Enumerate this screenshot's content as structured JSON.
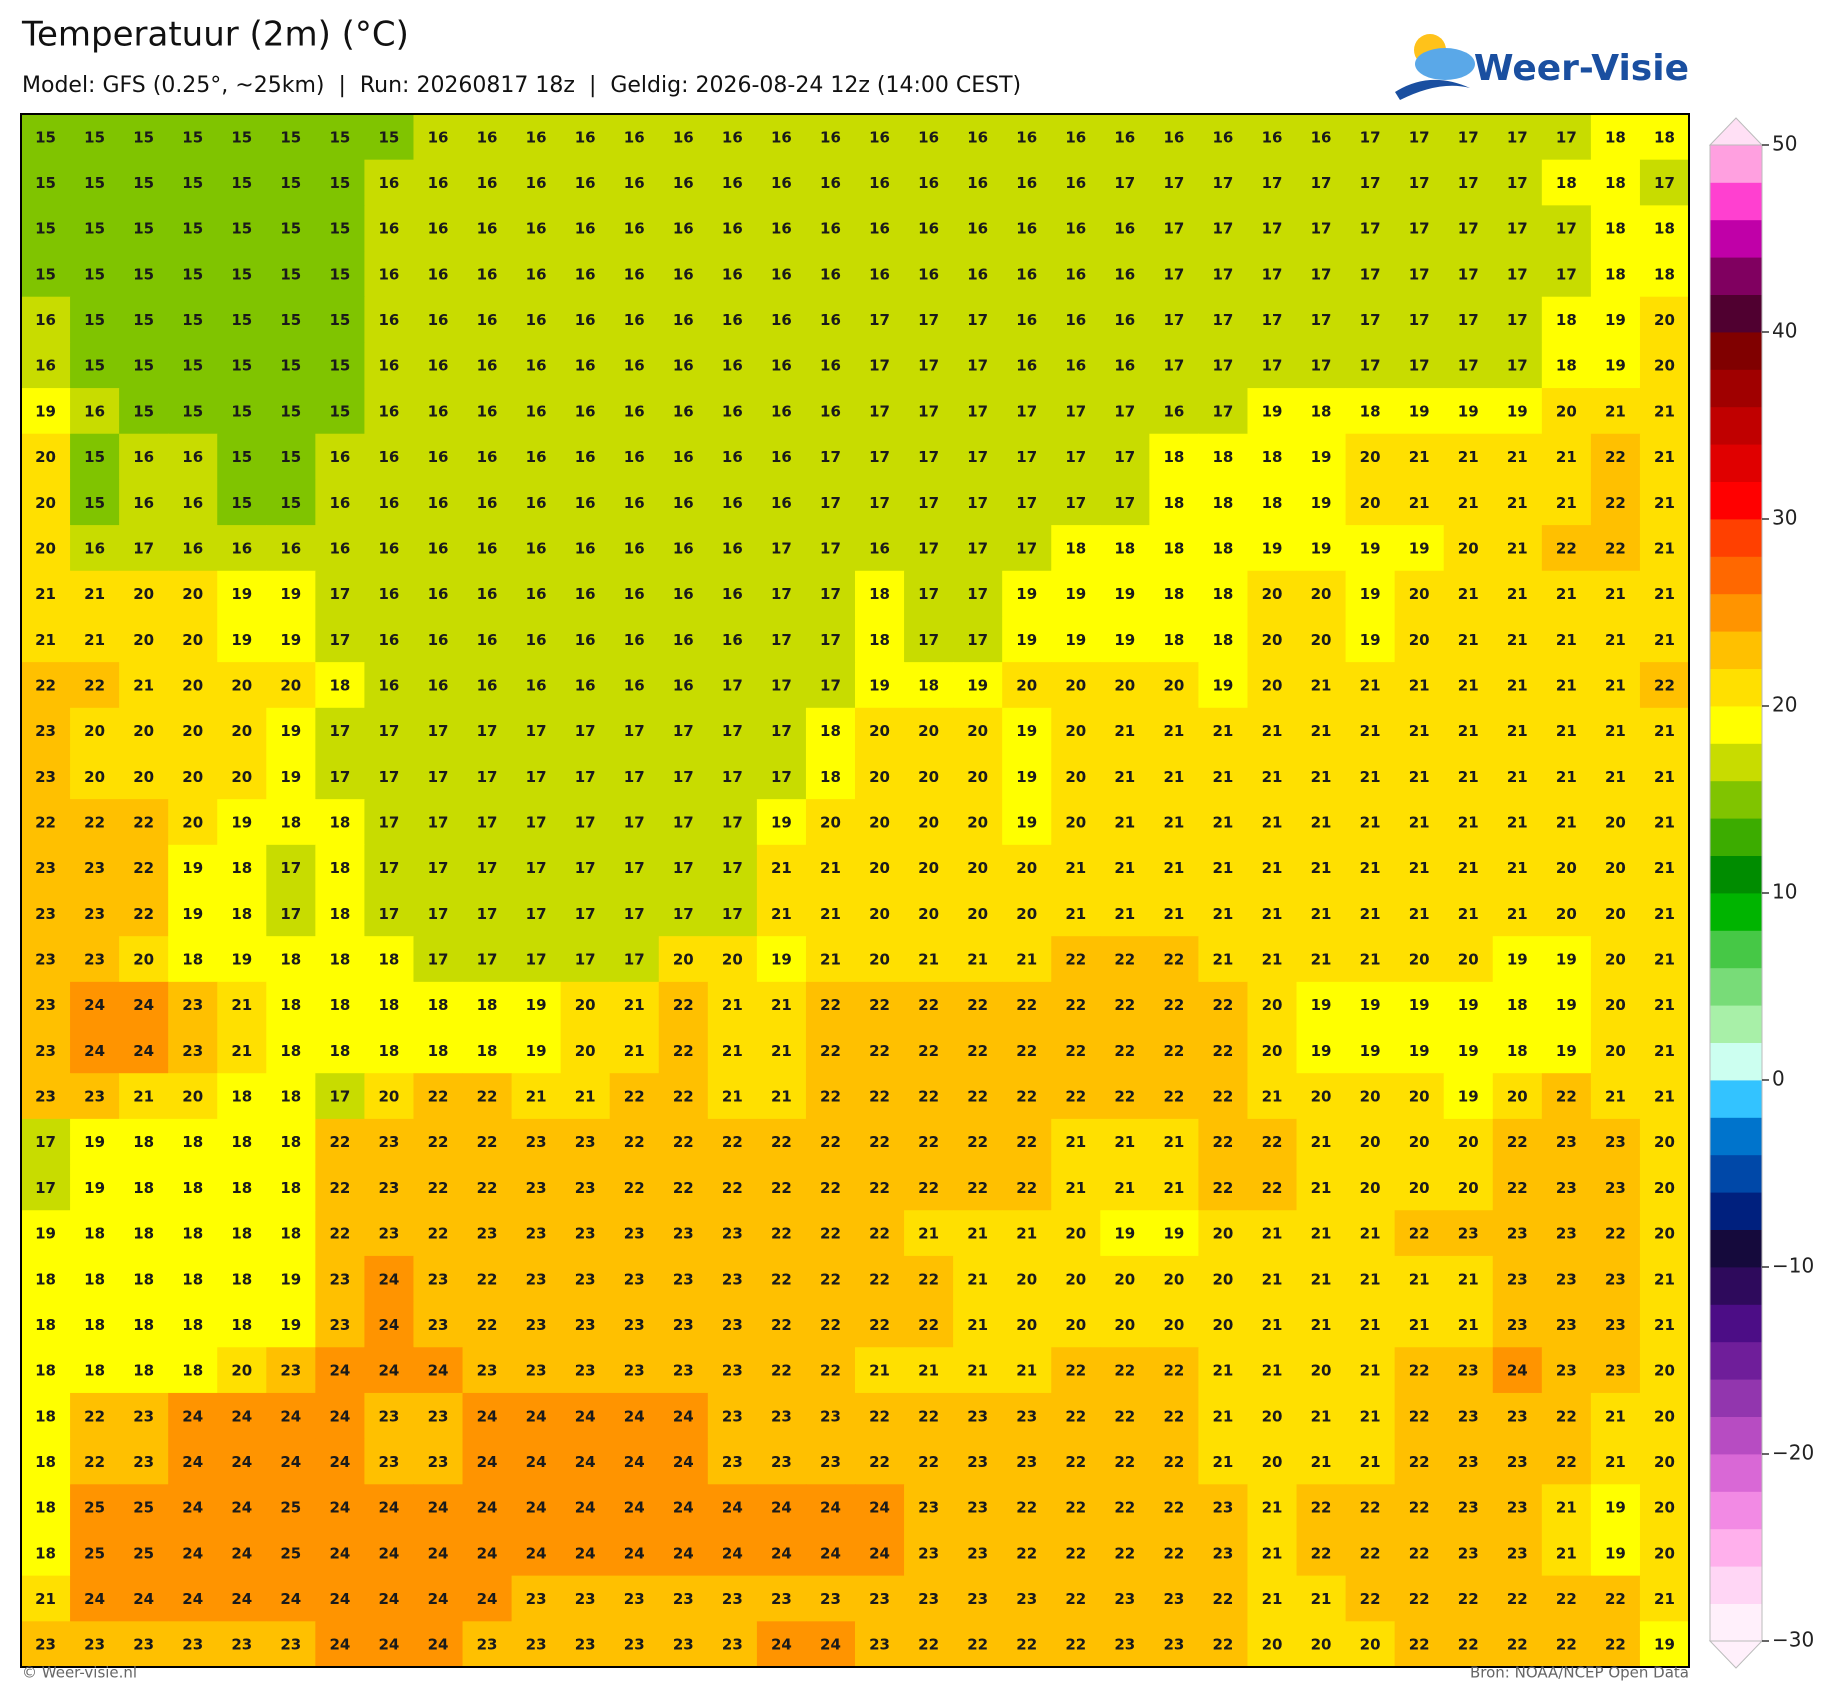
{
  "header": {
    "title": "Temperatuur (2m) (°C)",
    "subtitle": "Model: GFS (0.25°, ~25km)  |  Run: 20260817 18z  |  Geldig: 2026-08-24 12z (14:00 CEST)"
  },
  "logo": "Weer-Visie",
  "map": {
    "rows": [
      [
        15,
        15,
        15,
        15,
        15,
        15,
        15,
        15,
        16,
        16,
        16,
        16,
        16,
        16,
        16,
        16,
        16,
        16,
        16,
        16,
        16,
        16,
        16,
        16,
        16,
        16,
        16,
        17,
        17,
        17,
        17,
        17,
        18,
        18
      ],
      [
        15,
        15,
        15,
        15,
        15,
        15,
        15,
        16,
        16,
        16,
        16,
        16,
        16,
        16,
        16,
        16,
        16,
        16,
        16,
        16,
        16,
        16,
        17,
        17,
        17,
        17,
        17,
        17,
        17,
        17,
        17,
        18,
        18,
        17
      ],
      [
        15,
        15,
        15,
        15,
        15,
        15,
        15,
        16,
        16,
        16,
        16,
        16,
        16,
        16,
        16,
        16,
        16,
        16,
        16,
        16,
        16,
        16,
        16,
        17,
        17,
        17,
        17,
        17,
        17,
        17,
        17,
        17,
        18,
        18
      ],
      [
        15,
        15,
        15,
        15,
        15,
        15,
        15,
        16,
        16,
        16,
        16,
        16,
        16,
        16,
        16,
        16,
        16,
        16,
        16,
        16,
        16,
        16,
        16,
        17,
        17,
        17,
        17,
        17,
        17,
        17,
        17,
        17,
        18,
        18
      ],
      [
        16,
        15,
        15,
        15,
        15,
        15,
        15,
        16,
        16,
        16,
        16,
        16,
        16,
        16,
        16,
        16,
        16,
        17,
        17,
        17,
        16,
        16,
        16,
        17,
        17,
        17,
        17,
        17,
        17,
        17,
        17,
        18,
        19,
        20
      ],
      [
        16,
        15,
        15,
        15,
        15,
        15,
        15,
        16,
        16,
        16,
        16,
        16,
        16,
        16,
        16,
        16,
        16,
        17,
        17,
        17,
        16,
        16,
        16,
        17,
        17,
        17,
        17,
        17,
        17,
        17,
        17,
        18,
        19,
        20
      ],
      [
        19,
        16,
        15,
        15,
        15,
        15,
        15,
        16,
        16,
        16,
        16,
        16,
        16,
        16,
        16,
        16,
        16,
        17,
        17,
        17,
        17,
        17,
        17,
        16,
        17,
        19,
        18,
        18,
        19,
        19,
        19,
        20,
        21,
        21
      ],
      [
        20,
        15,
        16,
        16,
        15,
        15,
        16,
        16,
        16,
        16,
        16,
        16,
        16,
        16,
        16,
        16,
        17,
        17,
        17,
        17,
        17,
        17,
        17,
        18,
        18,
        18,
        19,
        20,
        21,
        21,
        21,
        21,
        22,
        21
      ],
      [
        20,
        15,
        16,
        16,
        15,
        15,
        16,
        16,
        16,
        16,
        16,
        16,
        16,
        16,
        16,
        16,
        17,
        17,
        17,
        17,
        17,
        17,
        17,
        18,
        18,
        18,
        19,
        20,
        21,
        21,
        21,
        21,
        22,
        21
      ],
      [
        20,
        16,
        17,
        16,
        16,
        16,
        16,
        16,
        16,
        16,
        16,
        16,
        16,
        16,
        16,
        17,
        17,
        16,
        17,
        17,
        17,
        18,
        18,
        18,
        18,
        19,
        19,
        19,
        19,
        20,
        21,
        22,
        22,
        21
      ],
      [
        21,
        21,
        20,
        20,
        19,
        19,
        17,
        16,
        16,
        16,
        16,
        16,
        16,
        16,
        16,
        17,
        17,
        18,
        17,
        17,
        19,
        19,
        19,
        18,
        18,
        20,
        20,
        19,
        20,
        21,
        21,
        21,
        21,
        21
      ],
      [
        21,
        21,
        20,
        20,
        19,
        19,
        17,
        16,
        16,
        16,
        16,
        16,
        16,
        16,
        16,
        17,
        17,
        18,
        17,
        17,
        19,
        19,
        19,
        18,
        18,
        20,
        20,
        19,
        20,
        21,
        21,
        21,
        21,
        21
      ],
      [
        22,
        22,
        21,
        20,
        20,
        20,
        18,
        16,
        16,
        16,
        16,
        16,
        16,
        16,
        17,
        17,
        17,
        19,
        18,
        19,
        20,
        20,
        20,
        20,
        19,
        20,
        21,
        21,
        21,
        21,
        21,
        21,
        21,
        22
      ],
      [
        23,
        20,
        20,
        20,
        20,
        19,
        17,
        17,
        17,
        17,
        17,
        17,
        17,
        17,
        17,
        17,
        18,
        20,
        20,
        20,
        19,
        20,
        21,
        21,
        21,
        21,
        21,
        21,
        21,
        21,
        21,
        21,
        21,
        21
      ],
      [
        23,
        20,
        20,
        20,
        20,
        19,
        17,
        17,
        17,
        17,
        17,
        17,
        17,
        17,
        17,
        17,
        18,
        20,
        20,
        20,
        19,
        20,
        21,
        21,
        21,
        21,
        21,
        21,
        21,
        21,
        21,
        21,
        21,
        21
      ],
      [
        22,
        22,
        22,
        20,
        19,
        18,
        18,
        17,
        17,
        17,
        17,
        17,
        17,
        17,
        17,
        19,
        20,
        20,
        20,
        20,
        19,
        20,
        21,
        21,
        21,
        21,
        21,
        21,
        21,
        21,
        21,
        21,
        20,
        21
      ],
      [
        23,
        23,
        22,
        19,
        18,
        17,
        18,
        17,
        17,
        17,
        17,
        17,
        17,
        17,
        17,
        21,
        21,
        20,
        20,
        20,
        20,
        21,
        21,
        21,
        21,
        21,
        21,
        21,
        21,
        21,
        21,
        20,
        20,
        21
      ],
      [
        23,
        23,
        22,
        19,
        18,
        17,
        18,
        17,
        17,
        17,
        17,
        17,
        17,
        17,
        17,
        21,
        21,
        20,
        20,
        20,
        20,
        21,
        21,
        21,
        21,
        21,
        21,
        21,
        21,
        21,
        21,
        20,
        20,
        21
      ],
      [
        23,
        23,
        20,
        18,
        19,
        18,
        18,
        18,
        17,
        17,
        17,
        17,
        17,
        20,
        20,
        19,
        21,
        20,
        21,
        21,
        21,
        22,
        22,
        22,
        21,
        21,
        21,
        21,
        20,
        20,
        19,
        19,
        20,
        21
      ],
      [
        23,
        24,
        24,
        23,
        21,
        18,
        18,
        18,
        18,
        18,
        19,
        20,
        21,
        22,
        21,
        21,
        22,
        22,
        22,
        22,
        22,
        22,
        22,
        22,
        22,
        20,
        19,
        19,
        19,
        19,
        18,
        19,
        20,
        21
      ],
      [
        23,
        24,
        24,
        23,
        21,
        18,
        18,
        18,
        18,
        18,
        19,
        20,
        21,
        22,
        21,
        21,
        22,
        22,
        22,
        22,
        22,
        22,
        22,
        22,
        22,
        20,
        19,
        19,
        19,
        19,
        18,
        19,
        20,
        21
      ],
      [
        23,
        23,
        21,
        20,
        18,
        18,
        17,
        20,
        22,
        22,
        21,
        21,
        22,
        22,
        21,
        21,
        22,
        22,
        22,
        22,
        22,
        22,
        22,
        22,
        22,
        21,
        20,
        20,
        20,
        19,
        20,
        22,
        21,
        21
      ],
      [
        17,
        19,
        18,
        18,
        18,
        18,
        22,
        23,
        22,
        22,
        23,
        23,
        22,
        22,
        22,
        22,
        22,
        22,
        22,
        22,
        22,
        21,
        21,
        21,
        22,
        22,
        21,
        20,
        20,
        20,
        22,
        23,
        23,
        20
      ],
      [
        17,
        19,
        18,
        18,
        18,
        18,
        22,
        23,
        22,
        22,
        23,
        23,
        22,
        22,
        22,
        22,
        22,
        22,
        22,
        22,
        22,
        21,
        21,
        21,
        22,
        22,
        21,
        20,
        20,
        20,
        22,
        23,
        23,
        20
      ],
      [
        19,
        18,
        18,
        18,
        18,
        18,
        22,
        23,
        22,
        23,
        23,
        23,
        23,
        23,
        23,
        22,
        22,
        22,
        21,
        21,
        21,
        20,
        19,
        19,
        20,
        21,
        21,
        21,
        22,
        23,
        23,
        23,
        22,
        20
      ],
      [
        18,
        18,
        18,
        18,
        18,
        19,
        23,
        24,
        23,
        22,
        23,
        23,
        23,
        23,
        23,
        22,
        22,
        22,
        22,
        21,
        20,
        20,
        20,
        20,
        20,
        21,
        21,
        21,
        21,
        21,
        23,
        23,
        23,
        21
      ],
      [
        18,
        18,
        18,
        18,
        18,
        19,
        23,
        24,
        23,
        22,
        23,
        23,
        23,
        23,
        23,
        22,
        22,
        22,
        22,
        21,
        20,
        20,
        20,
        20,
        20,
        21,
        21,
        21,
        21,
        21,
        23,
        23,
        23,
        21
      ],
      [
        18,
        18,
        18,
        18,
        20,
        23,
        24,
        24,
        24,
        23,
        23,
        23,
        23,
        23,
        23,
        22,
        22,
        21,
        21,
        21,
        21,
        22,
        22,
        22,
        21,
        21,
        20,
        21,
        22,
        23,
        24,
        23,
        23,
        20
      ],
      [
        18,
        22,
        23,
        24,
        24,
        24,
        24,
        23,
        23,
        24,
        24,
        24,
        24,
        24,
        23,
        23,
        23,
        22,
        22,
        23,
        23,
        22,
        22,
        22,
        21,
        20,
        21,
        21,
        22,
        23,
        23,
        22,
        21,
        20
      ],
      [
        18,
        22,
        23,
        24,
        24,
        24,
        24,
        23,
        23,
        24,
        24,
        24,
        24,
        24,
        23,
        23,
        23,
        22,
        22,
        23,
        23,
        22,
        22,
        22,
        21,
        20,
        21,
        21,
        22,
        23,
        23,
        22,
        21,
        20
      ],
      [
        18,
        25,
        25,
        24,
        24,
        25,
        24,
        24,
        24,
        24,
        24,
        24,
        24,
        24,
        24,
        24,
        24,
        24,
        23,
        23,
        22,
        22,
        22,
        22,
        23,
        21,
        22,
        22,
        22,
        23,
        23,
        21,
        19,
        20
      ],
      [
        18,
        25,
        25,
        24,
        24,
        25,
        24,
        24,
        24,
        24,
        24,
        24,
        24,
        24,
        24,
        24,
        24,
        24,
        23,
        23,
        22,
        22,
        22,
        22,
        23,
        21,
        22,
        22,
        22,
        23,
        23,
        21,
        19,
        20
      ],
      [
        21,
        24,
        24,
        24,
        24,
        24,
        24,
        24,
        24,
        24,
        23,
        23,
        23,
        23,
        23,
        23,
        23,
        23,
        23,
        23,
        23,
        22,
        23,
        23,
        22,
        21,
        21,
        22,
        22,
        22,
        22,
        22,
        22,
        21
      ],
      [
        23,
        23,
        23,
        23,
        23,
        23,
        24,
        24,
        24,
        23,
        23,
        23,
        23,
        23,
        23,
        24,
        24,
        23,
        22,
        22,
        22,
        22,
        23,
        23,
        22,
        20,
        20,
        20,
        22,
        22,
        22,
        22,
        22,
        19
      ]
    ]
  },
  "colorbar": {
    "range": [
      -30,
      50
    ],
    "ticks": [
      {
        "value": -30,
        "label": "−30"
      },
      {
        "value": -20,
        "label": "−20"
      },
      {
        "value": -10,
        "label": "−10"
      },
      0,
      10,
      20,
      30,
      40,
      50
    ],
    "colors": [
      "#fff0fb",
      "#ffd6f5",
      "#ffb0ec",
      "#f28ae4",
      "#d968d6",
      "#b74cc2",
      "#9236ae",
      "#6f1e9a",
      "#4c0d86",
      "#2e0a5c",
      "#150a3c",
      "#00207e",
      "#0048a8",
      "#0074cc",
      "#33c3ff",
      "#ccfff0",
      "#a8f0a8",
      "#78dc78",
      "#46c846",
      "#00b400",
      "#008c00",
      "#3cac00",
      "#80c400",
      "#c8dc00",
      "#ffff00",
      "#ffe000",
      "#ffc000",
      "#ff9400",
      "#ff6800",
      "#ff4000",
      "#ff0000",
      "#e00000",
      "#c00000",
      "#a00000",
      "#800000",
      "#500030",
      "#800060",
      "#c000a8",
      "#ff40d0",
      "#ffa0e0"
    ]
  },
  "footer": {
    "left": "© Weer-visie.nl",
    "right": "Bron: NOAA/NCEP Open Data"
  }
}
